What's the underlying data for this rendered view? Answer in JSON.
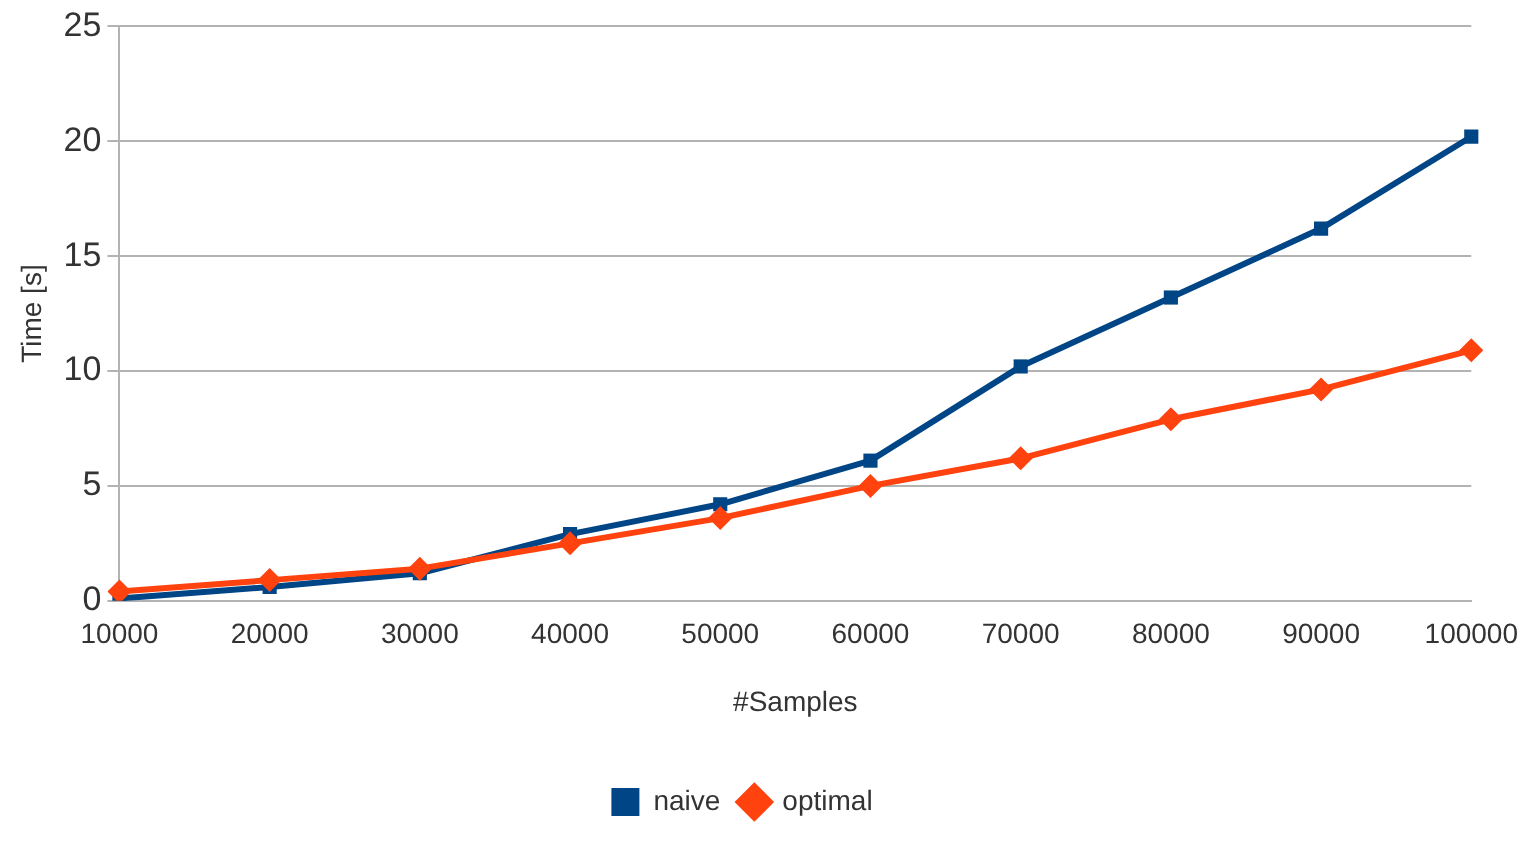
{
  "chart_data": {
    "type": "line",
    "xlabel": "#Samples",
    "ylabel": "Time [s]",
    "categories": [
      "10000",
      "20000",
      "30000",
      "40000",
      "50000",
      "60000",
      "70000",
      "80000",
      "90000",
      "100000"
    ],
    "series": [
      {
        "name": "naive",
        "color": "#004586",
        "marker": "square",
        "values": [
          0.1,
          0.6,
          1.2,
          2.9,
          4.2,
          6.1,
          10.2,
          13.2,
          16.2,
          20.2
        ]
      },
      {
        "name": "optimal",
        "color": "#ff420e",
        "marker": "diamond",
        "values": [
          0.4,
          0.9,
          1.4,
          2.5,
          3.6,
          5.0,
          6.2,
          7.9,
          9.2,
          10.9
        ]
      }
    ],
    "ylim": [
      0,
      25
    ],
    "yticks": [
      0,
      5,
      10,
      15,
      20,
      25
    ],
    "grid": "y",
    "legend": "bottom",
    "line_style": "solid"
  }
}
